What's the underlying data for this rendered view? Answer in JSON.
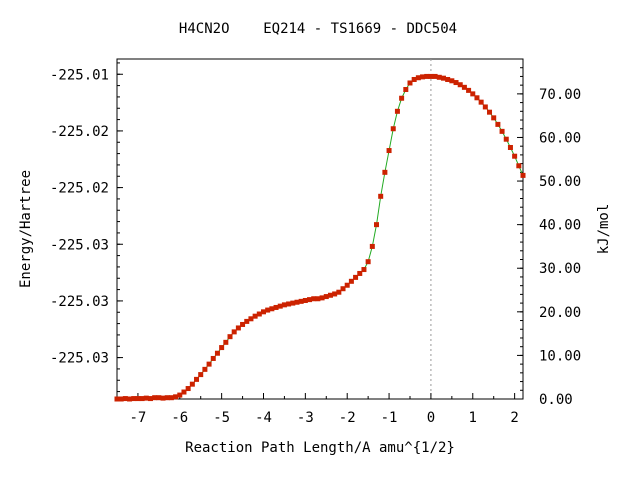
{
  "chart_data": {
    "type": "line",
    "title": "H4CN2O    EQ214 - TS1669 - DDC504",
    "xlabel": "Reaction Path Length/A amu^{1/2}",
    "ylabel": "Energy/Hartree",
    "y2label": "kJ/mol",
    "xlim": [
      -7.5,
      2.2
    ],
    "y2lim": [
      0,
      78
    ],
    "x_ticks": [
      -7,
      -6,
      -5,
      -4,
      -3,
      -2,
      -1,
      0,
      1,
      2
    ],
    "y_left_ticks": [
      {
        "label": "-225.01",
        "kjmol": 74.5
      },
      {
        "label": "-225.02",
        "kjmol": 61.5
      },
      {
        "label": "-225.02",
        "kjmol": 48.5
      },
      {
        "label": "-225.03",
        "kjmol": 35.5
      },
      {
        "label": "-225.03",
        "kjmol": 22.5
      },
      {
        "label": "-225.03",
        "kjmol": 9.5
      }
    ],
    "y_right_ticks": [
      {
        "label": "0.00",
        "value": 0
      },
      {
        "label": "10.00",
        "value": 10
      },
      {
        "label": "20.00",
        "value": 20
      },
      {
        "label": "30.00",
        "value": 30
      },
      {
        "label": "40.00",
        "value": 40
      },
      {
        "label": "50.00",
        "value": 50
      },
      {
        "label": "60.00",
        "value": 60
      },
      {
        "label": "70.00",
        "value": 70
      }
    ],
    "ts_marker_x": 0,
    "colors": {
      "line": "#22aa22",
      "point": "#cc2200",
      "marker_line": "#999999"
    },
    "series": [
      {
        "points": [
          [
            -7.5,
            0.0
          ],
          [
            -7.4,
            0.0
          ],
          [
            -7.3,
            0.1
          ],
          [
            -7.2,
            0.0
          ],
          [
            -7.1,
            0.1
          ],
          [
            -7.0,
            0.1
          ],
          [
            -6.9,
            0.1
          ],
          [
            -6.8,
            0.2
          ],
          [
            -6.7,
            0.1
          ],
          [
            -6.6,
            0.3
          ],
          [
            -6.5,
            0.3
          ],
          [
            -6.4,
            0.2
          ],
          [
            -6.3,
            0.3
          ],
          [
            -6.2,
            0.3
          ],
          [
            -6.1,
            0.5
          ],
          [
            -6.0,
            0.9
          ],
          [
            -5.9,
            1.6
          ],
          [
            -5.8,
            2.4
          ],
          [
            -5.7,
            3.4
          ],
          [
            -5.6,
            4.5
          ],
          [
            -5.5,
            5.6
          ],
          [
            -5.4,
            6.8
          ],
          [
            -5.3,
            8.0
          ],
          [
            -5.2,
            9.3
          ],
          [
            -5.1,
            10.5
          ],
          [
            -5.0,
            11.8
          ],
          [
            -4.9,
            13.0
          ],
          [
            -4.8,
            14.3
          ],
          [
            -4.7,
            15.4
          ],
          [
            -4.6,
            16.3
          ],
          [
            -4.5,
            17.1
          ],
          [
            -4.4,
            17.8
          ],
          [
            -4.3,
            18.4
          ],
          [
            -4.2,
            19.0
          ],
          [
            -4.1,
            19.5
          ],
          [
            -4.0,
            20.0
          ],
          [
            -3.9,
            20.4
          ],
          [
            -3.8,
            20.7
          ],
          [
            -3.7,
            21.0
          ],
          [
            -3.6,
            21.3
          ],
          [
            -3.5,
            21.6
          ],
          [
            -3.4,
            21.8
          ],
          [
            -3.3,
            22.0
          ],
          [
            -3.2,
            22.2
          ],
          [
            -3.1,
            22.4
          ],
          [
            -3.0,
            22.6
          ],
          [
            -2.9,
            22.8
          ],
          [
            -2.8,
            23.0
          ],
          [
            -2.7,
            23.0
          ],
          [
            -2.6,
            23.2
          ],
          [
            -2.5,
            23.5
          ],
          [
            -2.4,
            23.8
          ],
          [
            -2.3,
            24.1
          ],
          [
            -2.2,
            24.5
          ],
          [
            -2.1,
            25.3
          ],
          [
            -2.0,
            26.1
          ],
          [
            -1.9,
            27.0
          ],
          [
            -1.8,
            27.9
          ],
          [
            -1.7,
            28.8
          ],
          [
            -1.6,
            29.7
          ],
          [
            -1.5,
            31.5
          ],
          [
            -1.4,
            35.0
          ],
          [
            -1.3,
            40.0
          ],
          [
            -1.2,
            46.5
          ],
          [
            -1.1,
            52.0
          ],
          [
            -1.0,
            57.0
          ],
          [
            -0.9,
            62.0
          ],
          [
            -0.8,
            66.0
          ],
          [
            -0.7,
            69.0
          ],
          [
            -0.6,
            71.0
          ],
          [
            -0.5,
            72.5
          ],
          [
            -0.4,
            73.3
          ],
          [
            -0.3,
            73.7
          ],
          [
            -0.2,
            73.9
          ],
          [
            -0.1,
            74.0
          ],
          [
            0.0,
            74.0
          ],
          [
            0.1,
            74.0
          ],
          [
            0.2,
            73.8
          ],
          [
            0.3,
            73.6
          ],
          [
            0.4,
            73.3
          ],
          [
            0.5,
            73.0
          ],
          [
            0.6,
            72.6
          ],
          [
            0.7,
            72.1
          ],
          [
            0.8,
            71.5
          ],
          [
            0.9,
            70.8
          ],
          [
            1.0,
            70.0
          ],
          [
            1.1,
            69.1
          ],
          [
            1.2,
            68.1
          ],
          [
            1.3,
            67.0
          ],
          [
            1.4,
            65.8
          ],
          [
            1.5,
            64.5
          ],
          [
            1.6,
            63.0
          ],
          [
            1.7,
            61.4
          ],
          [
            1.8,
            59.6
          ],
          [
            1.9,
            57.7
          ],
          [
            2.0,
            55.7
          ],
          [
            2.1,
            53.5
          ],
          [
            2.2,
            51.3
          ]
        ]
      }
    ]
  }
}
